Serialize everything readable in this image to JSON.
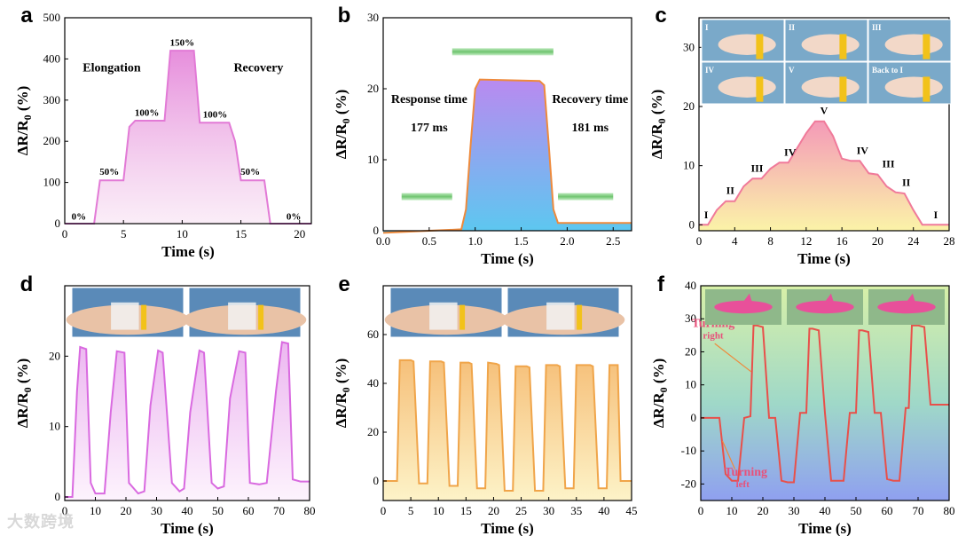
{
  "watermark": "大数跨境",
  "colors": {
    "orange": "#ee8a3c",
    "pink": "#e27ad6",
    "red": "#e8504a",
    "green": "#7fcf7f"
  },
  "chart_data": [
    {
      "panel": "a",
      "type": "area",
      "xlabel": "Time (s)",
      "ylabel_prefix": "ΔR/R",
      "ylabel_sub": "0",
      "ylabel_suffix": " (%)",
      "xlim": [
        0,
        21
      ],
      "ylim": [
        0,
        500
      ],
      "xticks": [
        0,
        5,
        10,
        15,
        20
      ],
      "yticks": [
        0,
        100,
        200,
        300,
        400,
        500
      ],
      "x": [
        0,
        2.5,
        3,
        4.5,
        5,
        5.5,
        6,
        8,
        8.5,
        9,
        11,
        11.5,
        12,
        14,
        14.5,
        15,
        17,
        17.5,
        18,
        21
      ],
      "y": [
        0,
        0,
        105,
        105,
        105,
        235,
        250,
        250,
        250,
        420,
        420,
        245,
        245,
        245,
        200,
        105,
        105,
        0,
        0,
        0
      ],
      "annotations": [
        {
          "text": "0%",
          "x": 1.2,
          "y": 10
        },
        {
          "text": "50%",
          "x": 3.8,
          "y": 118
        },
        {
          "text": "100%",
          "x": 7,
          "y": 262
        },
        {
          "text": "150%",
          "x": 10,
          "y": 432
        },
        {
          "text": "100%",
          "x": 12.8,
          "y": 258
        },
        {
          "text": "50%",
          "x": 15.8,
          "y": 118
        },
        {
          "text": "0%",
          "x": 19.5,
          "y": 10
        },
        {
          "text": "Elongation",
          "x": 4,
          "y": 370
        },
        {
          "text": "Recovery",
          "x": 16.5,
          "y": 370
        }
      ]
    },
    {
      "panel": "b",
      "type": "area",
      "xlabel": "Time (s)",
      "ylabel_prefix": "ΔR/R",
      "ylabel_sub": "0",
      "ylabel_suffix": " (%)",
      "xlim": [
        0,
        2.7
      ],
      "ylim": [
        0,
        30
      ],
      "xticks": [
        0.0,
        0.5,
        1.0,
        1.5,
        2.0,
        2.5
      ],
      "xtick_labels": [
        "0.0",
        "0.5",
        "1.0",
        "1.5",
        "2.0",
        "2.5"
      ],
      "yticks": [
        0,
        10,
        20,
        30
      ],
      "x": [
        0,
        0.85,
        0.9,
        0.95,
        1.0,
        1.05,
        1.7,
        1.75,
        1.8,
        1.85,
        1.9,
        2.7
      ],
      "y": [
        -0.3,
        0.2,
        3,
        12,
        20,
        21.3,
        21.1,
        20.5,
        12,
        3,
        1.1,
        1.1
      ],
      "annotations": [
        {
          "text": "Response time",
          "x": 0.5,
          "y": 18
        },
        {
          "text": "177 ms",
          "x": 0.5,
          "y": 14
        },
        {
          "text": "Recovery time",
          "x": 2.25,
          "y": 18
        },
        {
          "text": "181 ms",
          "x": 2.25,
          "y": 14
        }
      ]
    },
    {
      "panel": "c",
      "type": "area",
      "xlabel": "Time (s)",
      "ylabel_prefix": "ΔR/R",
      "ylabel_sub": "0",
      "ylabel_suffix": " (%)",
      "xlim": [
        0,
        28
      ],
      "ylim": [
        -1,
        35
      ],
      "xticks": [
        0,
        4,
        8,
        12,
        16,
        20,
        24,
        28
      ],
      "yticks": [
        0,
        10,
        20,
        30
      ],
      "x": [
        0,
        1,
        2,
        3,
        4,
        5,
        6,
        7,
        8,
        9,
        10,
        11,
        12,
        13,
        14,
        15,
        16,
        17,
        18,
        19,
        20,
        21,
        22,
        23,
        24,
        25,
        26,
        27,
        28
      ],
      "y": [
        0,
        0,
        2.5,
        4,
        4,
        6.5,
        7.8,
        7.8,
        9.5,
        10.5,
        10.5,
        13,
        15.5,
        17.5,
        17.5,
        15,
        11.2,
        10.8,
        10.8,
        8.7,
        8.5,
        6.5,
        5.5,
        5.3,
        2.5,
        0,
        0,
        0,
        0
      ],
      "stage_labels": [
        {
          "text": "I",
          "x": 0.8,
          "y": 0.5
        },
        {
          "text": "II",
          "x": 3.5,
          "y": 4.6
        },
        {
          "text": "III",
          "x": 6.5,
          "y": 8.4
        },
        {
          "text": "IV",
          "x": 10.2,
          "y": 11.1
        },
        {
          "text": "V",
          "x": 14,
          "y": 18.1
        },
        {
          "text": "IV",
          "x": 18.3,
          "y": 11.4
        },
        {
          "text": "III",
          "x": 21.2,
          "y": 9.1
        },
        {
          "text": "II",
          "x": 23.2,
          "y": 6.0
        },
        {
          "text": "I",
          "x": 26.5,
          "y": 0.5
        }
      ],
      "inset_labels": [
        "I",
        "II",
        "III",
        "IV",
        "V",
        "Back to I"
      ]
    },
    {
      "panel": "d",
      "type": "area",
      "xlabel": "Time (s)",
      "ylabel_prefix": "ΔR/R",
      "ylabel_sub": "0",
      "ylabel_suffix": " (%)",
      "xlim": [
        0,
        80
      ],
      "ylim": [
        -0.5,
        30
      ],
      "xticks": [
        0,
        10,
        20,
        30,
        40,
        50,
        60,
        70,
        80
      ],
      "yticks": [
        0,
        10,
        20
      ],
      "x": [
        0,
        2.5,
        4,
        5,
        7,
        8.5,
        10,
        13,
        15,
        17,
        19.5,
        21,
        24,
        26,
        28,
        30.5,
        32,
        35,
        37.5,
        39,
        41,
        44,
        45.5,
        48,
        50,
        52,
        54,
        57,
        59,
        60.5,
        63.5,
        66,
        69,
        71,
        73,
        74.5,
        77,
        80
      ],
      "y": [
        0,
        0,
        15,
        21.3,
        21,
        2,
        0.5,
        0.5,
        12,
        20.7,
        20.5,
        2,
        0.5,
        0.8,
        13,
        20.8,
        20.5,
        2,
        0.8,
        1.2,
        12,
        20.8,
        20.5,
        2,
        1.2,
        1.5,
        14,
        20.7,
        20.5,
        2,
        1.8,
        2,
        15,
        22,
        21.8,
        2.5,
        2.2,
        2.2
      ],
      "inset_images": 2
    },
    {
      "panel": "e",
      "type": "area",
      "xlabel": "Time (s)",
      "ylabel_prefix": "ΔR/R",
      "ylabel_sub": "0",
      "ylabel_suffix": " (%)",
      "xlim": [
        0,
        45
      ],
      "ylim": [
        -8,
        80
      ],
      "xticks": [
        0,
        5,
        10,
        15,
        20,
        25,
        30,
        35,
        40,
        45
      ],
      "yticks": [
        0,
        20,
        40,
        60
      ],
      "x": [
        0,
        2.5,
        3,
        5,
        5.5,
        6.5,
        8,
        8.5,
        10.5,
        11,
        12,
        13.5,
        14,
        15.5,
        16,
        17,
        18.5,
        19,
        20.5,
        21,
        22,
        23.5,
        24,
        26,
        26.5,
        27.5,
        29,
        29.5,
        31.5,
        32,
        33,
        34.5,
        35,
        37.5,
        38,
        39,
        40.5,
        41,
        42.5,
        43,
        45
      ],
      "y": [
        0,
        0,
        49.5,
        49.5,
        49,
        -1,
        -1,
        49,
        49,
        48.5,
        -2,
        -2,
        48.5,
        48.5,
        48,
        -3,
        -3,
        48.5,
        48,
        47.5,
        -4,
        -4,
        47,
        47,
        46.5,
        -4,
        -4,
        47.5,
        47.5,
        47,
        -3,
        -3,
        47.5,
        47.5,
        47,
        -3,
        -3,
        47.5,
        47.5,
        0,
        0
      ],
      "inset_images": 2
    },
    {
      "panel": "f",
      "type": "line",
      "xlabel": "Time (s)",
      "ylabel_prefix": "ΔR/R",
      "ylabel_sub": "0",
      "ylabel_suffix": " (%)",
      "xlim": [
        0,
        80
      ],
      "ylim": [
        -25,
        40
      ],
      "xticks": [
        0,
        10,
        20,
        30,
        40,
        50,
        60,
        70,
        80
      ],
      "yticks": [
        -20,
        -10,
        0,
        10,
        20,
        30,
        40
      ],
      "x": [
        0,
        6,
        8,
        10,
        12,
        14,
        16,
        17,
        18,
        20,
        22,
        24,
        26,
        28,
        30,
        32,
        34,
        35,
        36,
        38,
        40,
        42,
        44,
        46,
        48,
        50,
        51,
        52,
        54,
        56,
        58,
        60,
        62,
        64,
        66,
        67,
        68,
        70,
        72,
        74,
        76,
        80
      ],
      "y": [
        0,
        0,
        -17,
        -19,
        -19,
        0,
        0.5,
        28,
        28,
        27.5,
        0,
        0,
        -19,
        -19.5,
        -19.5,
        1.5,
        1.5,
        27,
        27,
        26.5,
        1.5,
        -19,
        -19,
        -19,
        1.5,
        1.5,
        26.5,
        26.5,
        26,
        1.5,
        1.5,
        -18.5,
        -19,
        -19,
        3,
        3,
        28,
        28,
        27.5,
        4,
        4,
        4
      ],
      "annotations": [
        {
          "text": "Turning",
          "x": 4,
          "y": 27.5
        },
        {
          "text": "right",
          "x": 4,
          "y": 24
        },
        {
          "text": "Turning",
          "x": 14.5,
          "y": -17.5
        },
        {
          "text": "left",
          "x": 13.5,
          "y": -21
        }
      ],
      "inset_images": 3
    }
  ]
}
